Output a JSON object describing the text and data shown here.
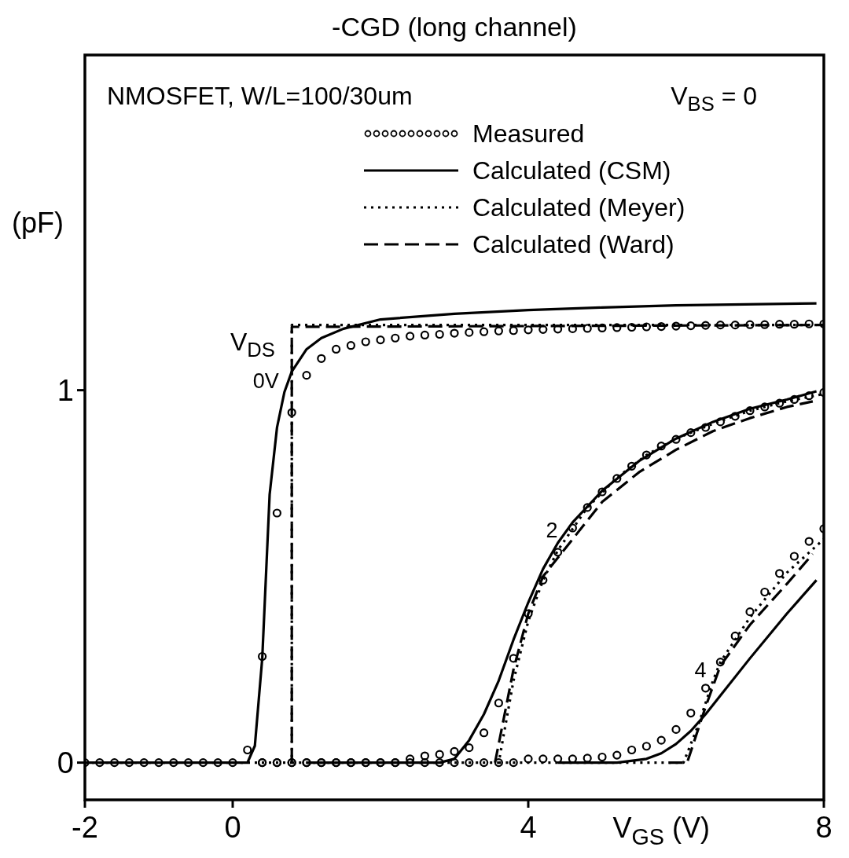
{
  "chart_data": {
    "type": "line",
    "title": "-CGD (long channel)",
    "xlabel": "V$_{GS}$ (V)",
    "ylabel": "(pF)",
    "xlim": [
      -2,
      8
    ],
    "ylim": [
      -0.1,
      1.9
    ],
    "xticks": [
      -2,
      0,
      4,
      8
    ],
    "yticks": [
      0,
      1
    ],
    "grid": false,
    "legend": "top right",
    "annotations": [
      "NMOSFET, W/L=100/30um",
      "V$_{BS}$ = 0",
      "V$_{DS}$",
      "0V",
      "2",
      "4"
    ],
    "series": [
      {
        "name": "Measured",
        "type": "scatter",
        "marker": "circle",
        "color": "#000000",
        "x": [
          -2,
          -1.8,
          -1.6,
          -1.4,
          -1.2,
          -1,
          -0.8,
          -0.6,
          -0.4,
          -0.2,
          0,
          0.2,
          0.4,
          0.6,
          0.8,
          1,
          1.2,
          1.4,
          1.6,
          1.8,
          2,
          2.2,
          2.4,
          2.6,
          2.8,
          3,
          3.2,
          3.4,
          3.6,
          3.8,
          4,
          4.2,
          4.4,
          4.6,
          4.8,
          5,
          5.2,
          5.4,
          5.6,
          5.8,
          6,
          6.2,
          6.4,
          6.6,
          6.8,
          7,
          7.2,
          7.4,
          7.6,
          7.8,
          8,
          0.4,
          0.6,
          0.8,
          1,
          1.2,
          1.4,
          1.6,
          1.8,
          2,
          2.2,
          2.4,
          2.6,
          2.8,
          3,
          3.2,
          3.4,
          3.6,
          3.8,
          4,
          4.2,
          4.4,
          4.6,
          4.8,
          5,
          5.2,
          5.4,
          5.6,
          5.8,
          6,
          6.2,
          6.4,
          6.6,
          6.8,
          7,
          7.2,
          7.4,
          7.6,
          7.8,
          8,
          0.4,
          0.6,
          0.8,
          1,
          1.2,
          1.4,
          1.6,
          1.8,
          2,
          2.2,
          2.4,
          2.6,
          2.8,
          3,
          3.2,
          3.4,
          3.6,
          3.8,
          4,
          4.2,
          4.4,
          4.6,
          4.8,
          5,
          5.2,
          5.4,
          5.6,
          5.8,
          6,
          6.2,
          6.4,
          6.6,
          6.8,
          7,
          7.2,
          7.4,
          7.6,
          7.8,
          8
        ],
        "values": [
          0,
          0,
          0,
          0,
          0,
          0,
          0,
          0,
          0,
          0,
          0,
          0.034,
          0.285,
          0.67,
          0.94,
          1.04,
          1.085,
          1.11,
          1.12,
          1.13,
          1.135,
          1.14,
          1.145,
          1.148,
          1.15,
          1.153,
          1.155,
          1.157,
          1.159,
          1.16,
          1.162,
          1.163,
          1.164,
          1.165,
          1.166,
          1.167,
          1.168,
          1.169,
          1.17,
          1.171,
          1.172,
          1.173,
          1.174,
          1.175,
          1.175,
          1.176,
          1.176,
          1.177,
          1.177,
          1.178,
          1.178,
          0,
          0,
          0,
          0,
          0,
          0,
          0,
          0,
          0,
          0,
          0.01,
          0.018,
          0.022,
          0.03,
          0.04,
          0.08,
          0.16,
          0.28,
          0.4,
          0.49,
          0.565,
          0.63,
          0.685,
          0.727,
          0.763,
          0.796,
          0.826,
          0.85,
          0.868,
          0.886,
          0.9,
          0.915,
          0.93,
          0.945,
          0.955,
          0.965,
          0.975,
          0.985,
          0.994,
          0,
          0,
          0,
          0,
          0,
          0,
          0,
          0,
          0,
          0,
          0,
          0,
          0,
          0,
          0,
          0,
          0,
          0,
          0.01,
          0.01,
          0.01,
          0.01,
          0.012,
          0.015,
          0.02,
          0.034,
          0.044,
          0.06,
          0.089,
          0.133,
          0.2,
          0.27,
          0.34,
          0.405,
          0.458,
          0.508,
          0.554,
          0.594,
          0.628
        ]
      },
      {
        "name": "Calculated (CSM)",
        "line_style": "solid",
        "color": "#000000",
        "x": [
          -2,
          0.2,
          0.3,
          0.4,
          0.45,
          0.5,
          0.6,
          0.7,
          0.8,
          1,
          1.2,
          1.5,
          2,
          3,
          4,
          5,
          6,
          7.9
        ],
        "values": [
          0,
          0,
          0.045,
          0.28,
          0.5,
          0.72,
          0.9,
          0.995,
          1.05,
          1.11,
          1.14,
          1.165,
          1.19,
          1.205,
          1.215,
          1.222,
          1.228,
          1.233
        ]
      },
      {
        "line_style": "solid",
        "color": "#000000",
        "x": [
          1,
          2.8,
          3,
          3.2,
          3.4,
          3.6,
          3.8,
          4,
          4.2,
          4.4,
          4.6,
          5,
          5.5,
          6,
          6.5,
          7,
          7.5,
          7.9
        ],
        "values": [
          0,
          0,
          0.01,
          0.06,
          0.13,
          0.22,
          0.33,
          0.43,
          0.52,
          0.59,
          0.645,
          0.73,
          0.81,
          0.87,
          0.915,
          0.95,
          0.975,
          0.997
        ]
      },
      {
        "line_style": "solid",
        "color": "#000000",
        "x": [
          4.4,
          5.2,
          5.6,
          5.8,
          6,
          6.2,
          6.4,
          6.6,
          7,
          7.5,
          7.9
        ],
        "values": [
          0,
          0,
          0.01,
          0.025,
          0.05,
          0.085,
          0.13,
          0.18,
          0.28,
          0.4,
          0.49
        ]
      },
      {
        "name": "Calculated (Meyer)",
        "line_style": "dotted",
        "color": "#000000",
        "x": [
          -2,
          0.8,
          0.8,
          8
        ],
        "values": [
          0,
          0,
          1.175,
          1.175
        ]
      },
      {
        "line_style": "dotted",
        "color": "#000000",
        "x": [
          0.8,
          3.6,
          3.8,
          4,
          4.2,
          4.4,
          4.8,
          5.2,
          5.6,
          6,
          6.5,
          7,
          7.5,
          8
        ],
        "values": [
          0,
          0,
          0.22,
          0.38,
          0.49,
          0.57,
          0.685,
          0.765,
          0.826,
          0.87,
          0.91,
          0.945,
          0.97,
          0.99
        ]
      },
      {
        "line_style": "dotted",
        "color": "#000000",
        "x": [
          3.6,
          6.1,
          6.3,
          6.5,
          6.6,
          7,
          7.5,
          8
        ],
        "values": [
          0,
          0,
          0.1,
          0.22,
          0.27,
          0.39,
          0.51,
          0.6
        ]
      },
      {
        "name": "Calculated (Ward)",
        "line_style": "dashed",
        "color": "#000000",
        "x": [
          0.8,
          0.8,
          8
        ],
        "values": [
          0,
          1.17,
          1.175
        ]
      },
      {
        "line_style": "dashed",
        "color": "#000000",
        "x": [
          3.55,
          3.6,
          3.8,
          4,
          4.2,
          4.6,
          5,
          5.5,
          6,
          6.5,
          7,
          7.5,
          7.85
        ],
        "values": [
          0,
          0.05,
          0.25,
          0.4,
          0.5,
          0.6,
          0.7,
          0.78,
          0.84,
          0.89,
          0.925,
          0.955,
          0.97
        ]
      },
      {
        "line_style": "dashed",
        "color": "#000000",
        "x": [
          5.9,
          6.15,
          6.4,
          6.6,
          7,
          7.5,
          7.85
        ],
        "values": [
          0,
          0,
          0.15,
          0.26,
          0.37,
          0.48,
          0.56
        ]
      }
    ]
  }
}
